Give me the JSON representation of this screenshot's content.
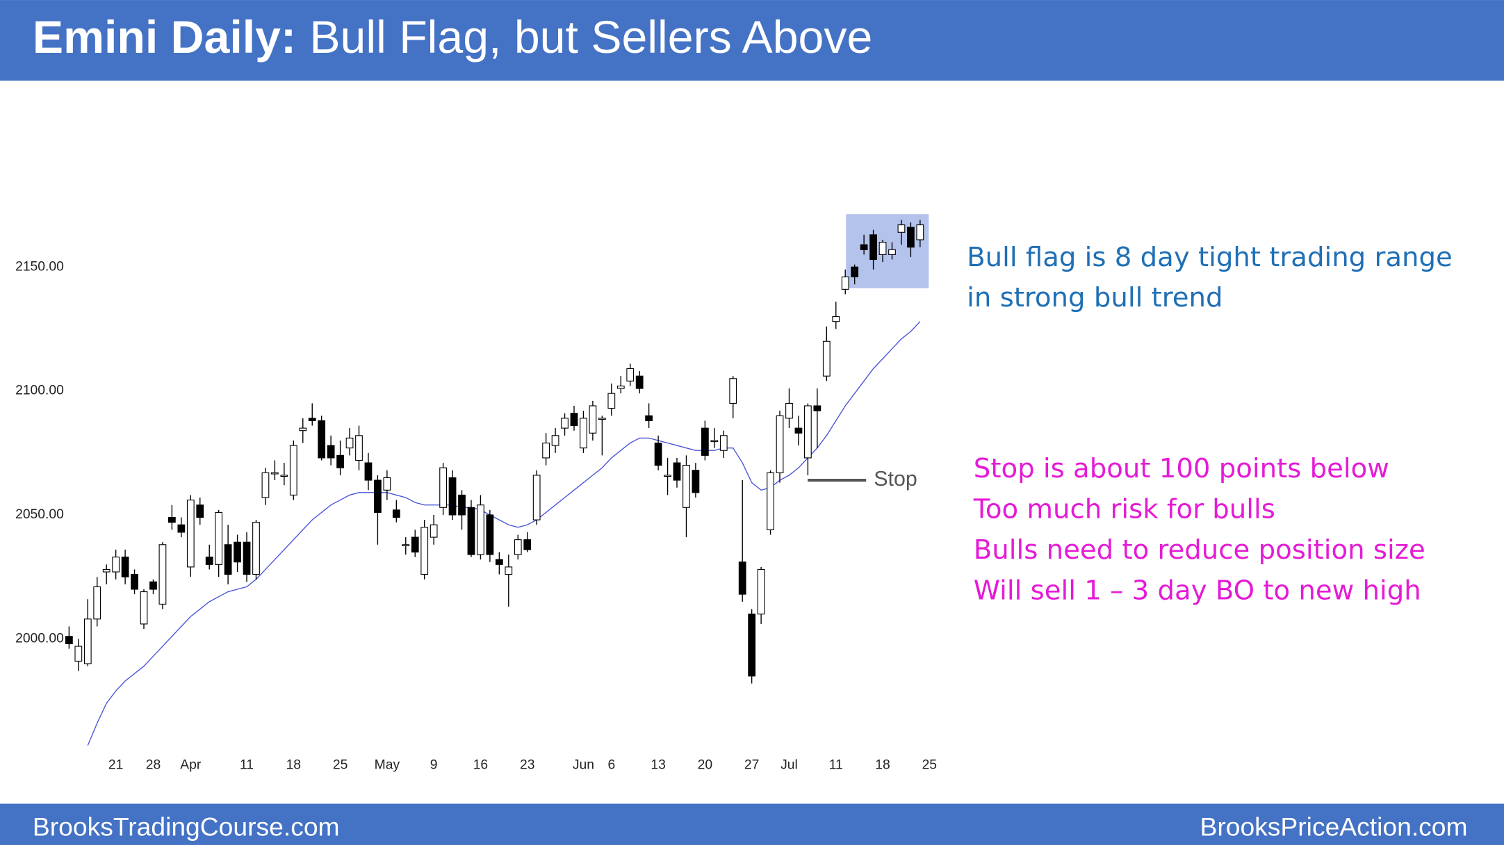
{
  "header": {
    "title_bold": "Emini Daily:",
    "title_rest": "Bull Flag, but Sellers Above"
  },
  "footer": {
    "left": "BrooksTradingCourse.com",
    "right": "BrooksPriceAction.com"
  },
  "chart_data": {
    "type": "candlestick",
    "categories": [
      null,
      null,
      null,
      null,
      null,
      "21",
      null,
      null,
      null,
      "28",
      null,
      null,
      null,
      "Apr",
      null,
      null,
      null,
      null,
      null,
      "11",
      null,
      null,
      null,
      null,
      "18",
      null,
      null,
      null,
      null,
      "25",
      null,
      null,
      null,
      null,
      "May",
      null,
      null,
      null,
      null,
      "9",
      null,
      null,
      null,
      null,
      "16",
      null,
      null,
      null,
      null,
      "23",
      null,
      null,
      null,
      null,
      null,
      "Jun",
      null,
      null,
      "6",
      null,
      null,
      null,
      null,
      "13",
      null,
      null,
      null,
      null,
      "20",
      null,
      null,
      null,
      null,
      "27",
      null,
      null,
      null,
      "Jul",
      null,
      null,
      null,
      null,
      "11",
      null,
      null,
      null,
      null,
      "18",
      null,
      null,
      null,
      null,
      "25"
    ],
    "open": [
      2001,
      1991,
      1990,
      2008,
      2027,
      2027,
      2033,
      2026,
      2006,
      2023,
      2014,
      2049,
      2046,
      2029,
      2054,
      2033,
      2030,
      2038,
      2039,
      2039,
      2026,
      2057,
      2067,
      2066,
      2058,
      2084,
      2089,
      2088,
      2078,
      2074,
      2077,
      2072,
      2071,
      2064,
      2060,
      2052,
      2038,
      2041,
      2026,
      2041,
      2053,
      2065,
      2058,
      2053,
      2034,
      2050,
      2032,
      2026,
      2034,
      2040,
      2048,
      2073,
      2078,
      2085,
      2091,
      2077,
      2083,
      2089,
      2093,
      2101,
      2104,
      2106,
      2090,
      2079,
      2066,
      2071,
      2053,
      2068,
      2085,
      2080,
      2076,
      2095,
      2031,
      2010,
      2010,
      2044,
      2067,
      2089,
      2085,
      2073,
      2094,
      2106,
      2128,
      2141,
      2150,
      2159,
      2163,
      2155,
      2155,
      2164,
      2166,
      2161,
      null
    ],
    "high": [
      2005,
      2000,
      2016,
      2025,
      2030,
      2036,
      2036,
      2028,
      2020,
      2024,
      2039,
      2054,
      2049,
      2058,
      2057,
      2038,
      2052,
      2046,
      2042,
      2043,
      2048,
      2069,
      2072,
      2071,
      2080,
      2089,
      2095,
      2090,
      2082,
      2080,
      2085,
      2086,
      2075,
      2066,
      2068,
      2056,
      2041,
      2044,
      2048,
      2050,
      2071,
      2068,
      2060,
      2056,
      2058,
      2052,
      2035,
      2034,
      2042,
      2043,
      2068,
      2083,
      2085,
      2091,
      2094,
      2092,
      2096,
      2090,
      2103,
      2106,
      2111,
      2108,
      2095,
      2082,
      2073,
      2073,
      2074,
      2071,
      2088,
      2085,
      2084,
      2106,
      2064,
      2012,
      2029,
      2068,
      2092,
      2101,
      2090,
      2095,
      2101,
      2126,
      2136,
      2149,
      2151,
      2163,
      2165,
      2161,
      2160,
      2169,
      2168,
      2169,
      null
    ],
    "low": [
      1996,
      1987,
      1989,
      2005,
      2022,
      2024,
      2022,
      2018,
      2004,
      2018,
      2012,
      2044,
      2041,
      2025,
      2046,
      2028,
      2025,
      2022,
      2027,
      2023,
      2024,
      2054,
      2064,
      2062,
      2056,
      2079,
      2086,
      2072,
      2070,
      2066,
      2074,
      2068,
      2060,
      2038,
      2056,
      2047,
      2034,
      2033,
      2024,
      2038,
      2050,
      2048,
      2044,
      2033,
      2032,
      2031,
      2026,
      2013,
      2032,
      2035,
      2046,
      2070,
      2075,
      2082,
      2084,
      2075,
      2080,
      2074,
      2090,
      2099,
      2102,
      2099,
      2085,
      2068,
      2058,
      2061,
      2041,
      2057,
      2072,
      2077,
      2073,
      2089,
      2015,
      1982,
      2006,
      2042,
      2063,
      2085,
      2078,
      2066,
      2077,
      2104,
      2125,
      2139,
      2143,
      2155,
      2149,
      2152,
      2153,
      2159,
      2154,
      2158,
      null
    ],
    "close": [
      1998,
      1997,
      2008,
      2021,
      2028,
      2033,
      2025,
      2020,
      2019,
      2020,
      2038,
      2047,
      2043,
      2056,
      2049,
      2030,
      2051,
      2026,
      2031,
      2026,
      2047,
      2067,
      2067,
      2066,
      2078,
      2085,
      2088,
      2073,
      2073,
      2069,
      2081,
      2082,
      2064,
      2051,
      2065,
      2049,
      2038,
      2035,
      2045,
      2046,
      2069,
      2050,
      2050,
      2034,
      2054,
      2034,
      2030,
      2029,
      2040,
      2036,
      2066,
      2079,
      2082,
      2089,
      2086,
      2089,
      2094,
      2089,
      2099,
      2102,
      2109,
      2101,
      2088,
      2070,
      2066,
      2064,
      2070,
      2059,
      2074,
      2080,
      2082,
      2105,
      2018,
      1985,
      2028,
      2067,
      2090,
      2095,
      2083,
      2094,
      2092,
      2120,
      2130,
      2146,
      2146,
      2157,
      2153,
      2160,
      2157,
      2167,
      2158,
      2167,
      null
    ],
    "series": [
      {
        "name": "moving average",
        "color": "#4a55d8",
        "values": [
          null,
          null,
          1957,
          1966,
          1974,
          1979,
          1983,
          1986,
          1989,
          1993,
          1997,
          2001,
          2005,
          2009,
          2012,
          2015,
          2017,
          2019,
          2020,
          2021,
          2024,
          2028,
          2032,
          2036,
          2040,
          2044,
          2048,
          2051,
          2054,
          2056,
          2058,
          2059,
          2059,
          2059,
          2059,
          2058,
          2057,
          2055,
          2054,
          2054,
          2054,
          2054,
          2053,
          2053,
          2052,
          2050,
          2048,
          2046,
          2045,
          2046,
          2048,
          2051,
          2054,
          2057,
          2060,
          2063,
          2066,
          2069,
          2073,
          2076,
          2079,
          2081,
          2081,
          2080,
          2079,
          2078,
          2077,
          2076,
          2076,
          2076,
          2077,
          2077,
          2071,
          2063,
          2060,
          2061,
          2064,
          2066,
          2069,
          2073,
          2077,
          2082,
          2088,
          2094,
          2099,
          2104,
          2109,
          2113,
          2117,
          2121,
          2124,
          2128,
          null
        ]
      }
    ],
    "ylim": [
      1954,
      2219
    ],
    "yticks": [
      {
        "value": 2000,
        "label": "2000.00"
      },
      {
        "value": 2050,
        "label": "2050.00"
      },
      {
        "value": 2100,
        "label": "2100.00"
      },
      {
        "value": 2150,
        "label": "2150.00"
      }
    ],
    "up_color": "#ffffff",
    "down_color": "#000000",
    "highlight_color": "#b4c3ec",
    "stop": {
      "label": "Stop",
      "value": 2064
    },
    "annotation_blue": [
      "Bull flag is 8 day tight trading range",
      "in strong bull trend"
    ],
    "annotation_pink": [
      "Stop is about 100 points below",
      "Too much risk for bulls",
      "Bulls need to reduce position size",
      "Will sell 1 – 3 day BO to new high"
    ]
  }
}
